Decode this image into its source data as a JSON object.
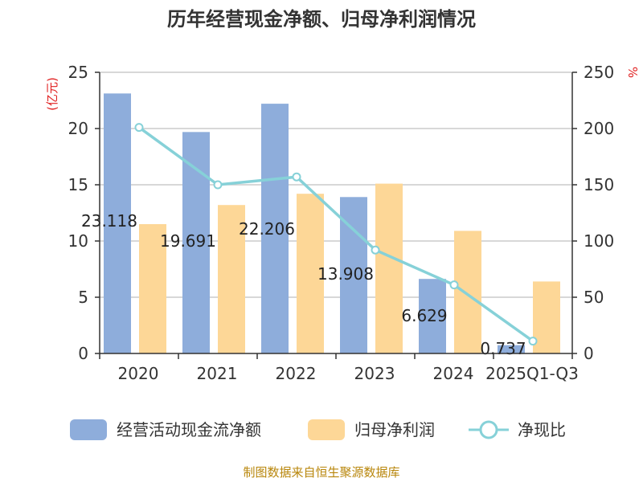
{
  "chart_data": {
    "type": "bar",
    "title": "历年经营现金净额、归母净利润情况",
    "categories": [
      "2020",
      "2021",
      "2022",
      "2023",
      "2024",
      "2025Q1-Q3"
    ],
    "series": [
      {
        "name": "经营活动现金流净额",
        "kind": "bar",
        "axis": "left",
        "color": "#8eaddb",
        "values": [
          23.118,
          19.691,
          22.206,
          13.908,
          6.629,
          0.737
        ],
        "labels": [
          "23.118",
          "19.691",
          "22.206",
          "13.908",
          "6.629",
          "0.737"
        ]
      },
      {
        "name": "归母净利润",
        "kind": "bar",
        "axis": "left",
        "color": "#fdd797",
        "values": [
          11.5,
          13.2,
          14.2,
          15.1,
          10.9,
          6.4
        ]
      },
      {
        "name": "净现比",
        "kind": "line",
        "axis": "right",
        "color": "#86d1d8",
        "values": [
          201,
          150,
          157,
          92,
          61,
          11
        ]
      }
    ],
    "y_left": {
      "label": "(亿元)",
      "ylim": [
        0,
        25
      ],
      "ticks": [
        0,
        5,
        10,
        15,
        20,
        25
      ]
    },
    "y_right": {
      "label": "%",
      "ylim": [
        0,
        250
      ],
      "ticks": [
        0,
        50,
        100,
        150,
        200,
        250
      ]
    },
    "grid": true,
    "legend_position": "bottom"
  },
  "footer": {
    "source": "制图数据来自恒生聚源数据库"
  }
}
